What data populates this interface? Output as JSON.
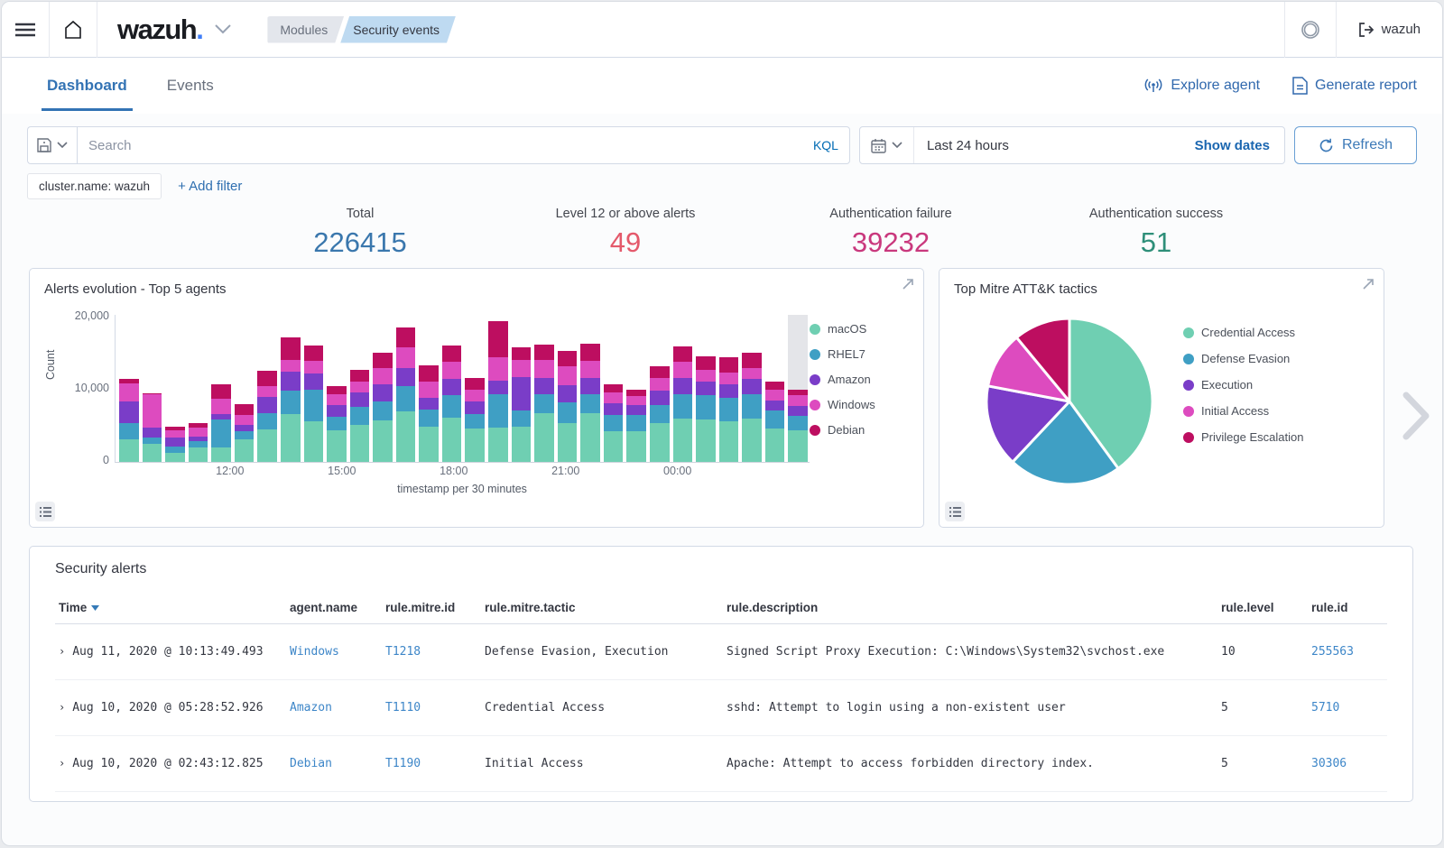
{
  "colors": {
    "primary": "#3373b4",
    "link": "#3d86c8",
    "panel_border": "#d3dae6",
    "palette": {
      "macOS": "#6fcfb2",
      "RHEL7": "#3f9fc4",
      "Amazon": "#7a3dc8",
      "Windows": "#dd4bbf",
      "Debian": "#bd0e60"
    },
    "pie_palette": {
      "Credential Access": "#6fcfb2",
      "Defense Evasion": "#3f9fc4",
      "Execution": "#7a3dc8",
      "Initial Access": "#dd4bbf",
      "Privilege Escalation": "#bd0e60"
    }
  },
  "icons": {
    "menu": "hamburger",
    "home": "house-outline",
    "logo_caret": "chevron-down",
    "space": "double-ring",
    "logout": "exit-arrow",
    "explore": "signal",
    "report": "document",
    "save": "floppy-disk",
    "calendar": "calendar",
    "refresh": "circular-arrow",
    "expand": "diagonal-arrow",
    "inspect": "list",
    "sort": "arrow-down",
    "next": "chevron-right"
  },
  "header": {
    "logo": "wazuh",
    "logo_dot": ".",
    "breadcrumbs": [
      {
        "label": "Modules"
      },
      {
        "label": "Security events"
      }
    ],
    "user": "wazuh"
  },
  "tabs": [
    {
      "label": "Dashboard",
      "active": true
    },
    {
      "label": "Events",
      "active": false
    }
  ],
  "actions": {
    "explore": "Explore agent",
    "report": "Generate report"
  },
  "search": {
    "placeholder": "Search",
    "kql": "KQL",
    "date_value": "Last 24 hours",
    "show_dates": "Show dates",
    "refresh": "Refresh"
  },
  "filters": {
    "chip": "cluster.name: wazuh",
    "add": "+ Add filter"
  },
  "stats": [
    {
      "label": "Total",
      "value": "226415",
      "color": "#3a77ad"
    },
    {
      "label": "Level 12 or above alerts",
      "value": "49",
      "color": "#e4596b"
    },
    {
      "label": "Authentication failure",
      "value": "39232",
      "color": "#c9387d"
    },
    {
      "label": "Authentication success",
      "value": "51",
      "color": "#2e8f79"
    }
  ],
  "chart_data": [
    {
      "type": "bar",
      "title": "Alerts evolution - Top 5 agents",
      "xlabel": "timestamp per 30 minutes",
      "ylabel": "Count",
      "ylim": [
        0,
        20000
      ],
      "y_ticks": [
        "0",
        "10,000",
        "20,000"
      ],
      "x_ticks": [
        {
          "label": "12:00",
          "pos": 16.6
        },
        {
          "label": "15:00",
          "pos": 32.7
        },
        {
          "label": "18:00",
          "pos": 48.8
        },
        {
          "label": "21:00",
          "pos": 64.9
        },
        {
          "label": "00:00",
          "pos": 81.0
        }
      ],
      "legend_position": "right",
      "highlight_last_bar": true,
      "series_names": [
        "macOS",
        "RHEL7",
        "Amazon",
        "Windows",
        "Debian"
      ],
      "bars": [
        [
          3000,
          2300,
          2900,
          2400,
          600
        ],
        [
          2400,
          900,
          1300,
          4500,
          200
        ],
        [
          1200,
          900,
          1200,
          1000,
          500
        ],
        [
          1900,
          900,
          600,
          1200,
          600
        ],
        [
          2000,
          3700,
          800,
          2000,
          2000
        ],
        [
          3000,
          1200,
          800,
          1400,
          1400
        ],
        [
          4400,
          2200,
          2200,
          1400,
          2100
        ],
        [
          6500,
          3200,
          2500,
          1600,
          3000
        ],
        [
          5500,
          4300,
          2200,
          1700,
          2100
        ],
        [
          4300,
          1800,
          1600,
          1500,
          1100
        ],
        [
          5000,
          2400,
          2000,
          1500,
          1500
        ],
        [
          5600,
          2600,
          2300,
          2200,
          2100
        ],
        [
          6800,
          3500,
          2400,
          2800,
          2700
        ],
        [
          4800,
          2300,
          1500,
          2200,
          2300
        ],
        [
          6000,
          3000,
          2200,
          2300,
          2200
        ],
        [
          4500,
          2000,
          1700,
          1600,
          1500
        ],
        [
          4600,
          4600,
          1800,
          3200,
          4800
        ],
        [
          4800,
          2200,
          4500,
          2300,
          1700
        ],
        [
          6600,
          2500,
          2300,
          2400,
          2000
        ],
        [
          5300,
          2800,
          2300,
          2500,
          2100
        ],
        [
          6600,
          2500,
          2200,
          2400,
          2300
        ],
        [
          4100,
          2300,
          1500,
          1500,
          1100
        ],
        [
          4200,
          2200,
          1300,
          1200,
          900
        ],
        [
          5200,
          2500,
          2000,
          1700,
          1600
        ],
        [
          5900,
          3200,
          2200,
          2300,
          2000
        ],
        [
          5700,
          3300,
          1800,
          1600,
          1900
        ],
        [
          5500,
          3200,
          1800,
          1600,
          2100
        ],
        [
          5800,
          3400,
          2000,
          1500,
          2000
        ],
        [
          4500,
          2400,
          1400,
          1500,
          1000
        ],
        [
          4300,
          1900,
          1400,
          1400,
          700
        ]
      ]
    },
    {
      "type": "pie",
      "title": "Top Mitre ATT&K tactics",
      "legend_position": "right",
      "labels": [
        "Credential Access",
        "Defense Evasion",
        "Execution",
        "Initial Access",
        "Privilege Escalation"
      ],
      "values": [
        40,
        22,
        16,
        11,
        11
      ]
    }
  ],
  "table": {
    "title": "Security alerts",
    "columns": [
      {
        "key": "time",
        "label": "Time",
        "sortable": true
      },
      {
        "key": "agent",
        "label": "agent.name",
        "link": true
      },
      {
        "key": "mitre_id",
        "label": "rule.mitre.id",
        "link": true
      },
      {
        "key": "tactic",
        "label": "rule.mitre.tactic"
      },
      {
        "key": "description",
        "label": "rule.description"
      },
      {
        "key": "level",
        "label": "rule.level"
      },
      {
        "key": "rule_id",
        "label": "rule.id",
        "link": true
      }
    ],
    "rows": [
      {
        "time": "Aug 11, 2020 @ 10:13:49.493",
        "agent": "Windows",
        "mitre_id": "T1218",
        "tactic": "Defense Evasion, Execution",
        "description": "Signed Script Proxy Execution: C:\\Windows\\System32\\svchost.exe",
        "level": "10",
        "rule_id": "255563"
      },
      {
        "time": "Aug 10, 2020 @ 05:28:52.926",
        "agent": "Amazon",
        "mitre_id": "T1110",
        "tactic": "Credential Access",
        "description": "sshd: Attempt to login using a non-existent user",
        "level": "5",
        "rule_id": "5710"
      },
      {
        "time": "Aug 10, 2020 @ 02:43:12.825",
        "agent": "Debian",
        "mitre_id": "T1190",
        "tactic": "Initial Access",
        "description": "Apache: Attempt to access forbidden directory index.",
        "level": "5",
        "rule_id": "30306"
      }
    ]
  }
}
